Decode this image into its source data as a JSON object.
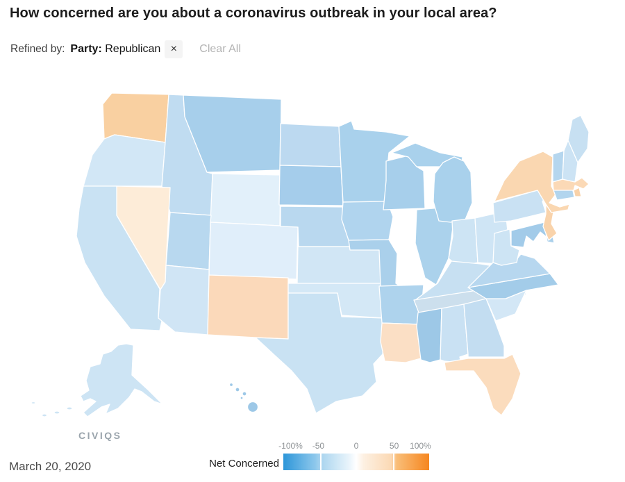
{
  "header": {
    "title": "How concerned are you about a coronavirus outbreak in your local area?"
  },
  "filter_bar": {
    "refined_by_label": "Refined by:",
    "chip": {
      "field": "Party:",
      "value": "Republican",
      "remove_icon": "×"
    },
    "clear_all_label": "Clear All"
  },
  "branding": {
    "logo_text": "CIVIQS"
  },
  "footer": {
    "date": "March 20, 2020"
  },
  "legend": {
    "label": "Net Concerned",
    "gradient": [
      "#2d96d9 0%",
      "#8ec8ec 22%",
      "#aad5ef 26%",
      "#e9f4fb 45%",
      "#ffffff 50%",
      "#fdf0e2 55%",
      "#fbd9b4 74%",
      "#f9bd77 78%",
      "#f6861f 100%"
    ],
    "separator_color": "#ffffff",
    "ticks": [
      {
        "label": "-100%",
        "pos": 5
      },
      {
        "label": "-50",
        "pos": 24
      },
      {
        "label": "0",
        "pos": 50
      },
      {
        "label": "50",
        "pos": 76
      },
      {
        "label": "100%",
        "pos": 94
      }
    ]
  },
  "map": {
    "states": {
      "WA": {
        "name": "Washington",
        "color": "#f9d0a1"
      },
      "OR": {
        "name": "Oregon",
        "color": "#d2e7f6"
      },
      "CA": {
        "name": "California",
        "color": "#c9e2f3"
      },
      "NV": {
        "name": "Nevada",
        "color": "#fdecd8"
      },
      "ID": {
        "name": "Idaho",
        "color": "#c0dcf1"
      },
      "MT": {
        "name": "Montana",
        "color": "#a7cfeb"
      },
      "WY": {
        "name": "Wyoming",
        "color": "#e2f0fa"
      },
      "UT": {
        "name": "Utah",
        "color": "#b8d8ef"
      },
      "CO": {
        "name": "Colorado",
        "color": "#e0eefa"
      },
      "AZ": {
        "name": "Arizona",
        "color": "#d0e5f5"
      },
      "NM": {
        "name": "New Mexico",
        "color": "#fbd9ba"
      },
      "ND": {
        "name": "North Dakota",
        "color": "#bcd9f0"
      },
      "SD": {
        "name": "South Dakota",
        "color": "#a5cdeb"
      },
      "NE": {
        "name": "Nebraska",
        "color": "#b9d8ef"
      },
      "KS": {
        "name": "Kansas",
        "color": "#d1e6f5"
      },
      "OK": {
        "name": "Oklahoma",
        "color": "#d4e8f6"
      },
      "TX": {
        "name": "Texas",
        "color": "#c9e2f3"
      },
      "MN": {
        "name": "Minnesota",
        "color": "#a9d1ec"
      },
      "IA": {
        "name": "Iowa",
        "color": "#b0d4ee"
      },
      "MO": {
        "name": "Missouri",
        "color": "#aad0eb"
      },
      "AR": {
        "name": "Arkansas",
        "color": "#aed3ed"
      },
      "LA": {
        "name": "Louisiana",
        "color": "#fbdfc5"
      },
      "WI": {
        "name": "Wisconsin",
        "color": "#a7cfeb"
      },
      "IL": {
        "name": "Illinois",
        "color": "#abd2ec"
      },
      "MI": {
        "name": "Michigan",
        "color": "#a9d1ec"
      },
      "IN": {
        "name": "Indiana",
        "color": "#cde4f4"
      },
      "OH": {
        "name": "Ohio",
        "color": "#cfe5f5"
      },
      "KY": {
        "name": "Kentucky",
        "color": "#c7e0f2"
      },
      "TN": {
        "name": "Tennessee",
        "color": "#ccdfed"
      },
      "MS": {
        "name": "Mississippi",
        "color": "#9dc8e7"
      },
      "AL": {
        "name": "Alabama",
        "color": "#c9e1f3"
      },
      "GA": {
        "name": "Georgia",
        "color": "#c3ddf1"
      },
      "FL": {
        "name": "Florida",
        "color": "#fbdcbd"
      },
      "SC": {
        "name": "South Carolina",
        "color": "#d3e7f6"
      },
      "NC": {
        "name": "North Carolina",
        "color": "#a3cce9"
      },
      "VA": {
        "name": "Virginia",
        "color": "#b7d7ef"
      },
      "WV": {
        "name": "West Virginia",
        "color": "#cde4f4"
      },
      "MD": {
        "name": "Maryland",
        "color": "#a2cbe9"
      },
      "DE": {
        "name": "Delaware",
        "color": "#aad0eb"
      },
      "PA": {
        "name": "Pennsylvania",
        "color": "#c9e1f3"
      },
      "NJ": {
        "name": "New Jersey",
        "color": "#f9d3ab"
      },
      "NY": {
        "name": "New York",
        "color": "#fad7b1"
      },
      "CT": {
        "name": "Connecticut",
        "color": "#b2d5ee"
      },
      "RI": {
        "name": "Rhode Island",
        "color": "#f9d2a9"
      },
      "MA": {
        "name": "Massachusetts",
        "color": "#fbd9b6"
      },
      "VT": {
        "name": "Vermont",
        "color": "#b5d6ee"
      },
      "NH": {
        "name": "New Hampshire",
        "color": "#cce3f4"
      },
      "ME": {
        "name": "Maine",
        "color": "#c7e0f2"
      },
      "AK": {
        "name": "Alaska",
        "color": "#cde4f4"
      },
      "HI": {
        "name": "Hawaii",
        "color": "#9dc8e7"
      }
    }
  }
}
